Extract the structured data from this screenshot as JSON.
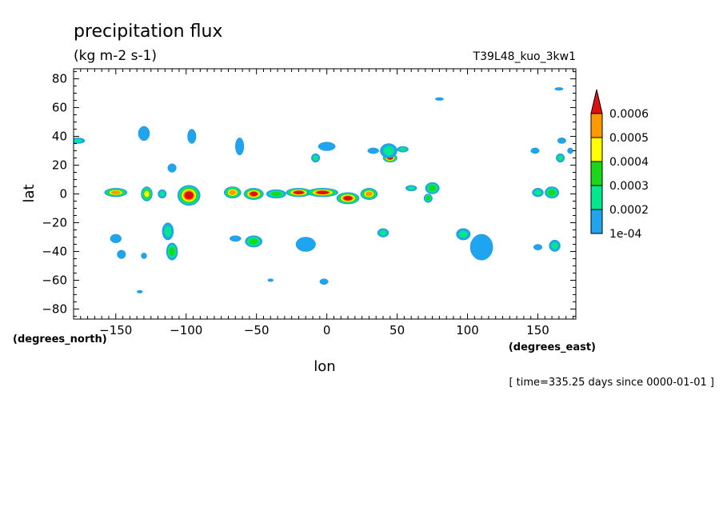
{
  "chart_data": {
    "type": "heatmap",
    "title": "precipitation flux",
    "units": "(kg m-2 s-1)",
    "dataset": "T39L48_kuo_3kw1",
    "xlabel": "lon",
    "ylabel": "lat",
    "x_units_label": "(degrees_east)",
    "y_units_label": "(degrees_north)",
    "xlim": [
      -180,
      177
    ],
    "ylim": [
      -87,
      87
    ],
    "x_ticks": [
      -150,
      -100,
      -50,
      0,
      50,
      100,
      150
    ],
    "x_tick_labels": [
      "−150",
      "−100",
      "−50",
      "0",
      "50",
      "100",
      "150"
    ],
    "y_ticks": [
      80,
      60,
      40,
      20,
      0,
      -20,
      -40,
      -60,
      -80
    ],
    "y_tick_labels": [
      "80",
      "60",
      "40",
      "20",
      "0",
      "−20",
      "−40",
      "−60",
      "−80"
    ],
    "time_label": "[ time=335.25 days since 0000-01-01 ]",
    "colorbar": {
      "levels": [
        "1e-04",
        "0.0002",
        "0.0003",
        "0.0004",
        "0.0005",
        "0.0006"
      ],
      "colors": [
        "#1fa5f0",
        "#00e88d",
        "#18d818",
        "#ffff00",
        "#ff9900",
        "#e01010"
      ]
    },
    "features": [
      {
        "lon": -150,
        "lat": 1,
        "rx": 8,
        "ry": 3,
        "level": 5
      },
      {
        "lon": -128,
        "lat": 0,
        "rx": 4,
        "ry": 5,
        "level": 4
      },
      {
        "lon": -117,
        "lat": 0,
        "rx": 3,
        "ry": 3,
        "level": 2
      },
      {
        "lon": -98,
        "lat": -1,
        "rx": 8,
        "ry": 7,
        "level": 6
      },
      {
        "lon": -67,
        "lat": 1,
        "rx": 6,
        "ry": 4,
        "level": 5
      },
      {
        "lon": -52,
        "lat": 0,
        "rx": 7,
        "ry": 4,
        "level": 6
      },
      {
        "lon": -36,
        "lat": 0,
        "rx": 7,
        "ry": 3,
        "level": 3
      },
      {
        "lon": -20,
        "lat": 1,
        "rx": 9,
        "ry": 3,
        "level": 6
      },
      {
        "lon": -3,
        "lat": 1,
        "rx": 11,
        "ry": 3,
        "level": 6
      },
      {
        "lon": 15,
        "lat": -3,
        "rx": 8,
        "ry": 4,
        "level": 6
      },
      {
        "lon": 30,
        "lat": 0,
        "rx": 6,
        "ry": 4,
        "level": 5
      },
      {
        "lon": 45,
        "lat": 25,
        "rx": 5,
        "ry": 3,
        "level": 6
      },
      {
        "lon": 60,
        "lat": 4,
        "rx": 4,
        "ry": 2,
        "level": 2
      },
      {
        "lon": 75,
        "lat": 4,
        "rx": 5,
        "ry": 4,
        "level": 3
      },
      {
        "lon": 72,
        "lat": -3,
        "rx": 3,
        "ry": 3,
        "level": 3
      },
      {
        "lon": 150,
        "lat": 1,
        "rx": 4,
        "ry": 3,
        "level": 2
      },
      {
        "lon": 160,
        "lat": 1,
        "rx": 5,
        "ry": 4,
        "level": 3
      },
      {
        "lon": -177,
        "lat": 37,
        "rx": 5,
        "ry": 2,
        "level": 2
      },
      {
        "lon": -130,
        "lat": 42,
        "rx": 4,
        "ry": 5,
        "level": 1
      },
      {
        "lon": -110,
        "lat": 18,
        "rx": 3,
        "ry": 3,
        "level": 1
      },
      {
        "lon": -96,
        "lat": 40,
        "rx": 3,
        "ry": 5,
        "level": 1
      },
      {
        "lon": -62,
        "lat": 33,
        "rx": 3,
        "ry": 6,
        "level": 1
      },
      {
        "lon": 0,
        "lat": 33,
        "rx": 6,
        "ry": 3,
        "level": 1
      },
      {
        "lon": 33,
        "lat": 30,
        "rx": 4,
        "ry": 2,
        "level": 1
      },
      {
        "lon": 44,
        "lat": 30,
        "rx": 6,
        "ry": 5,
        "level": 2
      },
      {
        "lon": 54,
        "lat": 31,
        "rx": 4,
        "ry": 2,
        "level": 2
      },
      {
        "lon": -8,
        "lat": 25,
        "rx": 3,
        "ry": 3,
        "level": 2
      },
      {
        "lon": 148,
        "lat": 30,
        "rx": 3,
        "ry": 2,
        "level": 1
      },
      {
        "lon": 166,
        "lat": 25,
        "rx": 3,
        "ry": 3,
        "level": 2
      },
      {
        "lon": 167,
        "lat": 37,
        "rx": 3,
        "ry": 2,
        "level": 1
      },
      {
        "lon": 173,
        "lat": 30,
        "rx": 2,
        "ry": 2,
        "level": 1
      },
      {
        "lon": 80,
        "lat": 66,
        "rx": 3,
        "ry": 1,
        "level": 1
      },
      {
        "lon": 165,
        "lat": 73,
        "rx": 3,
        "ry": 1,
        "level": 1
      },
      {
        "lon": -113,
        "lat": -26,
        "rx": 4,
        "ry": 6,
        "level": 2
      },
      {
        "lon": -110,
        "lat": -40,
        "rx": 4,
        "ry": 6,
        "level": 3
      },
      {
        "lon": -150,
        "lat": -31,
        "rx": 4,
        "ry": 3,
        "level": 1
      },
      {
        "lon": -146,
        "lat": -42,
        "rx": 3,
        "ry": 3,
        "level": 1
      },
      {
        "lon": -130,
        "lat": -43,
        "rx": 2,
        "ry": 2,
        "level": 1
      },
      {
        "lon": -65,
        "lat": -31,
        "rx": 4,
        "ry": 2,
        "level": 1
      },
      {
        "lon": -52,
        "lat": -33,
        "rx": 6,
        "ry": 4,
        "level": 3
      },
      {
        "lon": -15,
        "lat": -35,
        "rx": 7,
        "ry": 5,
        "level": 1
      },
      {
        "lon": 40,
        "lat": -27,
        "rx": 4,
        "ry": 3,
        "level": 2
      },
      {
        "lon": 97,
        "lat": -28,
        "rx": 5,
        "ry": 4,
        "level": 2
      },
      {
        "lon": 110,
        "lat": -37,
        "rx": 8,
        "ry": 9,
        "level": 1
      },
      {
        "lon": 162,
        "lat": -36,
        "rx": 4,
        "ry": 4,
        "level": 2
      },
      {
        "lon": 150,
        "lat": -37,
        "rx": 3,
        "ry": 2,
        "level": 1
      },
      {
        "lon": -2,
        "lat": -61,
        "rx": 3,
        "ry": 2,
        "level": 1
      },
      {
        "lon": -40,
        "lat": -60,
        "rx": 2,
        "ry": 1,
        "level": 1
      },
      {
        "lon": -133,
        "lat": -68,
        "rx": 2,
        "ry": 1,
        "level": 1
      }
    ]
  }
}
